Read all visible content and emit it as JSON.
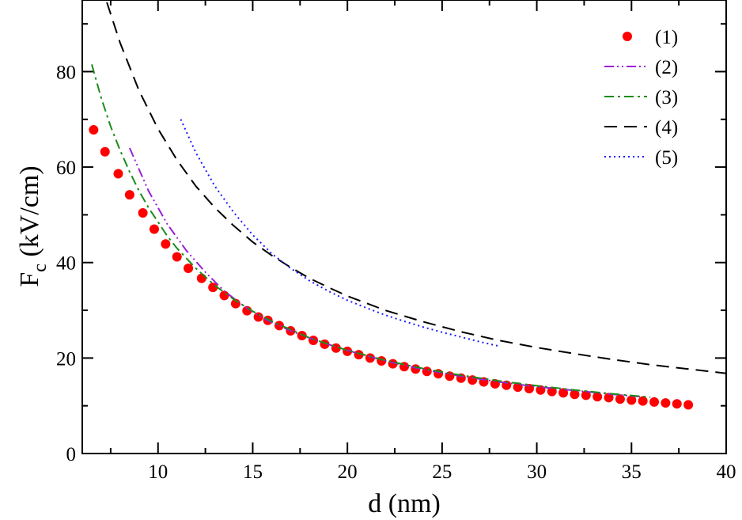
{
  "chart_data": {
    "type": "line",
    "title": "",
    "xlabel": "d (nm)",
    "ylabel_main": "F",
    "ylabel_sub": "c",
    "ylabel_rest": " (kV/cm)",
    "xlim": [
      6,
      40
    ],
    "ylim": [
      0,
      95
    ],
    "xticks": [
      10,
      15,
      20,
      25,
      30,
      35,
      40
    ],
    "yticks": [
      0,
      20,
      40,
      60,
      80
    ],
    "xtick_labels": [
      "10",
      "15",
      "20",
      "25",
      "30",
      "35",
      "40"
    ],
    "ytick_labels": [
      "0",
      "20",
      "40",
      "60",
      "80"
    ],
    "legend_position": "top-right",
    "series": [
      {
        "name": "(1)",
        "style": "markers",
        "color": "#ff0000",
        "x": [
          6.6,
          7.2,
          7.9,
          8.5,
          9.2,
          9.8,
          10.4,
          11.0,
          11.6,
          12.3,
          12.9,
          13.5,
          14.1,
          14.7,
          15.3,
          15.8,
          16.4,
          17.0,
          17.6,
          18.2,
          18.8,
          19.4,
          20.0,
          20.6,
          21.2,
          21.8,
          22.4,
          23.0,
          23.6,
          24.2,
          24.8,
          25.4,
          26.0,
          26.6,
          27.2,
          27.8,
          28.4,
          29.0,
          29.6,
          30.2,
          30.8,
          31.4,
          32.0,
          32.6,
          33.2,
          33.8,
          34.4,
          35.0,
          35.6,
          36.2,
          36.8,
          37.4,
          38.0
        ],
        "y": [
          67.8,
          63.2,
          58.6,
          54.2,
          50.4,
          47.0,
          43.9,
          41.2,
          38.8,
          36.7,
          34.8,
          33.1,
          31.4,
          29.9,
          28.6,
          27.9,
          26.8,
          25.7,
          24.7,
          23.7,
          22.9,
          22.1,
          21.4,
          20.7,
          20.0,
          19.4,
          18.8,
          18.2,
          17.7,
          17.2,
          16.7,
          16.2,
          15.8,
          15.4,
          15.0,
          14.6,
          14.3,
          13.9,
          13.6,
          13.3,
          13.0,
          12.7,
          12.4,
          12.2,
          11.9,
          11.7,
          11.4,
          11.2,
          11.0,
          10.8,
          10.6,
          10.4,
          10.2
        ]
      },
      {
        "name": "(2)",
        "style": "dash-dot-dot",
        "color": "#9a1fd6",
        "x": [
          8.5,
          9.5,
          10.5,
          11.5,
          12.5,
          13.5,
          14.5,
          15.5,
          17.0,
          18.5,
          20.0,
          22.0,
          24.0,
          26.0,
          28.0,
          30.0,
          32.0,
          34.0,
          35.5
        ],
        "y": [
          64.0,
          55.0,
          48.0,
          42.5,
          38.0,
          34.0,
          31.0,
          28.4,
          25.7,
          23.5,
          21.6,
          19.4,
          17.6,
          16.2,
          15.0,
          14.0,
          13.2,
          12.4,
          11.9
        ]
      },
      {
        "name": "(3)",
        "style": "dash-dot",
        "color": "#1a8c1a",
        "x": [
          6.5,
          7.0,
          7.5,
          8.0,
          8.5,
          9.0,
          9.5,
          10.0,
          10.5,
          11.0,
          12.0,
          13.0,
          14.0,
          15.0,
          16.0,
          18.0,
          20.0,
          22.0,
          24.0,
          26.0,
          28.0,
          30.0,
          32.0,
          34.0,
          36.0
        ],
        "y": [
          81.5,
          74.5,
          68.5,
          63.5,
          59.0,
          55.0,
          51.5,
          48.5,
          45.5,
          43.0,
          38.8,
          35.2,
          32.3,
          29.8,
          27.7,
          24.2,
          21.6,
          19.5,
          17.8,
          16.4,
          15.2,
          14.2,
          13.3,
          12.5,
          11.8
        ]
      },
      {
        "name": "(4)",
        "style": "dashed",
        "color": "#000000",
        "x": [
          7.3,
          8.0,
          9.0,
          10.0,
          11.0,
          12.0,
          13.0,
          14.0,
          15.0,
          16.0,
          17.0,
          18.0,
          19.0,
          20.0,
          22.0,
          24.0,
          26.0,
          28.0,
          30.0,
          32.0,
          34.0,
          36.0,
          38.0,
          40.0
        ],
        "y": [
          94.5,
          86.0,
          76.0,
          68.0,
          61.5,
          56.0,
          51.5,
          47.7,
          44.3,
          41.5,
          39.0,
          36.7,
          34.8,
          33.0,
          30.0,
          27.6,
          25.5,
          23.7,
          22.2,
          20.9,
          19.7,
          18.6,
          17.7,
          16.8
        ]
      },
      {
        "name": "(5)",
        "style": "dotted",
        "color": "#1a1aff",
        "x": [
          11.2,
          12.0,
          13.0,
          14.0,
          15.0,
          16.0,
          17.0,
          18.0,
          19.0,
          20.0,
          21.0,
          22.0,
          23.0,
          24.0,
          25.0,
          26.0,
          27.0,
          28.0
        ],
        "y": [
          70.0,
          63.0,
          56.0,
          50.5,
          45.8,
          41.9,
          38.8,
          36.2,
          34.0,
          32.1,
          30.5,
          29.0,
          27.7,
          26.5,
          25.4,
          24.4,
          23.4,
          22.5
        ]
      }
    ]
  }
}
